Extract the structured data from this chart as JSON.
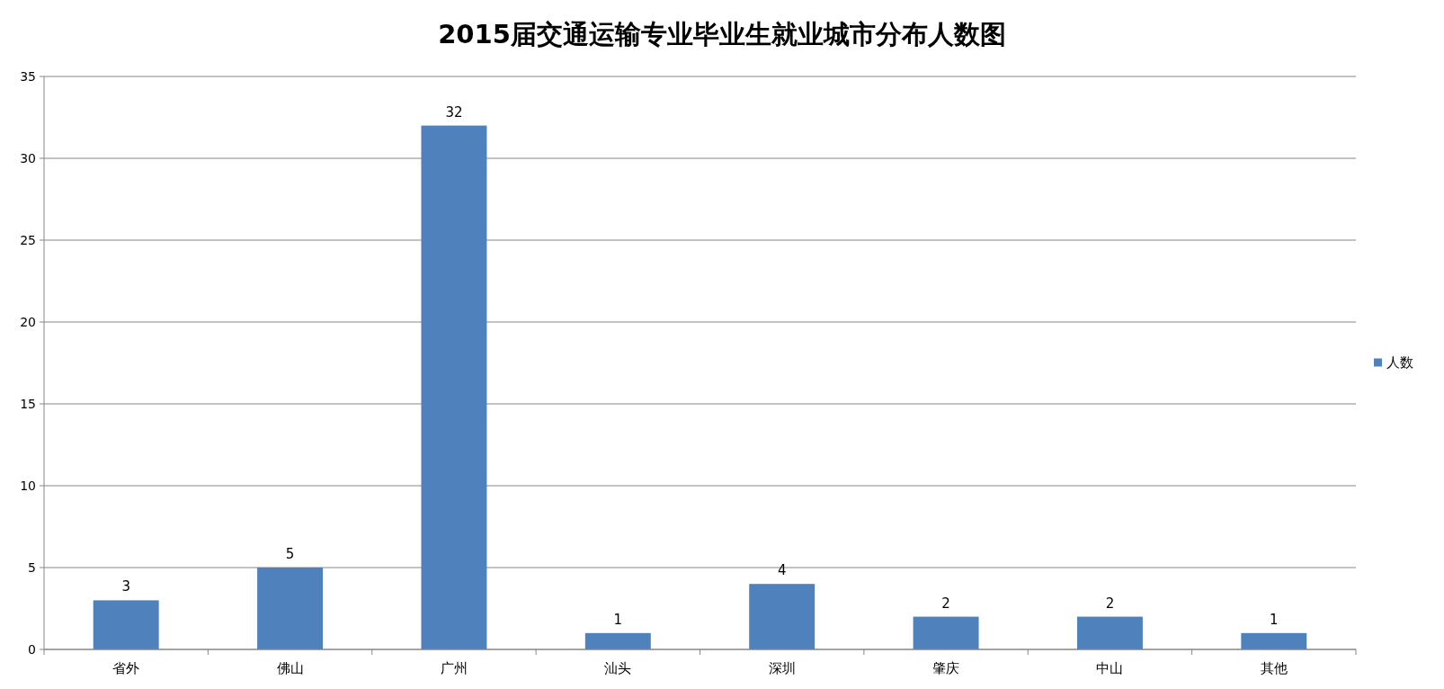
{
  "chart_data": {
    "type": "bar",
    "title": "2015届交通运输专业毕业生就业城市分布人数图",
    "categories": [
      "省外",
      "佛山",
      "广州",
      "汕头",
      "深圳",
      "肇庆",
      "中山",
      "其他"
    ],
    "series": [
      {
        "name": "人数",
        "color": "#4f81bd",
        "values": [
          3,
          5,
          32,
          1,
          4,
          2,
          2,
          1
        ]
      }
    ],
    "ylim": [
      0,
      35
    ],
    "yticks": [
      0,
      5,
      10,
      15,
      20,
      25,
      30,
      35
    ],
    "grid": "y",
    "legend": "right",
    "data_labels": true
  }
}
